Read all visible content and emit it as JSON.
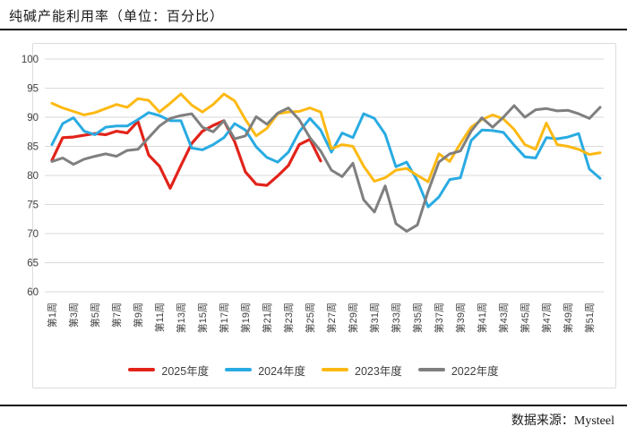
{
  "title": "纯碱产能利用率（单位：百分比）",
  "source_note": "数据来源：Mysteel",
  "colors": {
    "red_2025": "#e2231a",
    "blue_2024": "#29abe2",
    "yellow_2023": "#fdb913",
    "gray_2022": "#7f7f7f",
    "gridline": "#d9d9d9",
    "axis_text": "#404040"
  },
  "chart_data": {
    "type": "line",
    "title": "纯碱产能利用率（单位：百分比）",
    "xlabel": "",
    "ylabel": "",
    "ylim": [
      60,
      100
    ],
    "y_ticks": [
      60,
      65,
      70,
      75,
      80,
      85,
      90,
      95,
      100
    ],
    "grid": "horizontal",
    "legend_position": "bottom",
    "weeks_total": 52,
    "x_tick_labels": [
      "第1周",
      "第3周",
      "第5周",
      "第7周",
      "第9周",
      "第11周",
      "第13周",
      "第15周",
      "第17周",
      "第19周",
      "第21周",
      "第23周",
      "第25周",
      "第27周",
      "第29周",
      "第31周",
      "第33周",
      "第35周",
      "第37周",
      "第39周",
      "第41周",
      "第43周",
      "第45周",
      "第47周",
      "第49周",
      "第51周"
    ],
    "series": [
      {
        "name": "2025年度",
        "color": "#e2231a",
        "values": [
          82.6,
          86.5,
          86.6,
          86.9,
          87.2,
          87.0,
          87.6,
          87.3,
          89.3,
          83.5,
          81.6,
          77.8,
          81.7,
          85.5,
          87.6,
          88.6,
          89.4,
          85.8,
          80.6,
          78.5,
          78.3,
          79.9,
          81.7,
          85.3,
          86.2,
          82.5
        ]
      },
      {
        "name": "2024年度",
        "color": "#29abe2",
        "values": [
          85.3,
          88.9,
          89.9,
          87.6,
          87.0,
          88.3,
          88.5,
          88.5,
          89.6,
          90.8,
          90.3,
          89.4,
          89.4,
          84.7,
          84.4,
          85.3,
          86.5,
          88.9,
          87.8,
          84.9,
          83.1,
          82.3,
          84.0,
          87.5,
          89.8,
          87.8,
          84.0,
          87.3,
          86.5,
          90.6,
          89.8,
          87.1,
          81.5,
          82.3,
          79.1,
          74.6,
          76.3,
          79.3,
          79.6,
          86.0,
          87.8,
          87.7,
          87.4,
          85.2,
          83.2,
          83.0,
          86.5,
          86.3,
          86.6,
          87.2,
          81.1,
          79.5
        ]
      },
      {
        "name": "2023年度",
        "color": "#fdb913",
        "values": [
          92.4,
          91.6,
          91.0,
          90.4,
          90.8,
          91.5,
          92.2,
          91.7,
          93.2,
          92.9,
          90.9,
          92.4,
          94.0,
          92.1,
          90.9,
          92.2,
          94.0,
          92.8,
          89.6,
          86.8,
          88.1,
          90.6,
          90.9,
          91.0,
          91.6,
          90.9,
          84.6,
          85.3,
          85.0,
          81.6,
          79.0,
          79.6,
          80.9,
          81.2,
          80.0,
          78.9,
          83.7,
          82.4,
          85.5,
          88.3,
          89.6,
          90.4,
          89.7,
          87.9,
          85.3,
          84.5,
          89.0,
          85.3,
          85.0,
          84.5,
          83.6,
          83.9
        ]
      },
      {
        "name": "2022年度",
        "color": "#7f7f7f",
        "values": [
          82.4,
          83.0,
          81.9,
          82.8,
          83.3,
          83.7,
          83.3,
          84.3,
          84.5,
          86.5,
          88.5,
          89.8,
          90.3,
          90.6,
          88.3,
          87.5,
          89.4,
          86.3,
          86.8,
          90.1,
          88.8,
          90.7,
          91.6,
          89.6,
          86.5,
          84.2,
          80.9,
          79.8,
          82.1,
          75.8,
          73.7,
          78.2,
          71.7,
          70.4,
          71.5,
          77.3,
          82.3,
          83.7,
          84.2,
          87.6,
          89.9,
          88.3,
          90.0,
          92.0,
          90.0,
          91.3,
          91.5,
          91.1,
          91.2,
          90.6,
          89.8,
          91.7
        ]
      }
    ]
  }
}
